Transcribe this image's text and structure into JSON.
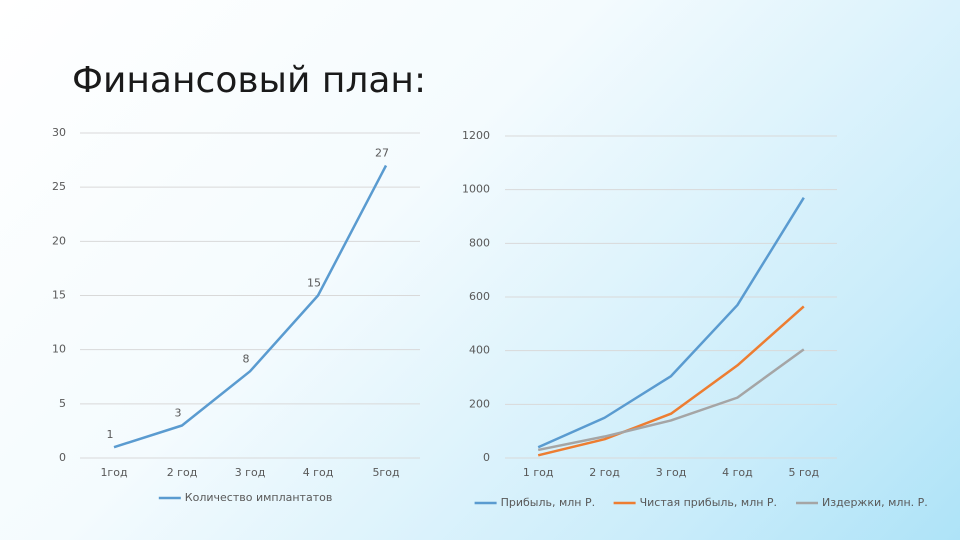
{
  "title": "Финансовый план:",
  "chart_data": [
    {
      "type": "line",
      "categories": [
        "1год",
        "2 год",
        "3 год",
        "4 год",
        "5год"
      ],
      "series": [
        {
          "name": "Количество имплантатов",
          "color": "#5a9bd0",
          "values": [
            1,
            3,
            8,
            15,
            27
          ]
        }
      ],
      "ylim": [
        0,
        30
      ],
      "yticks": [
        0,
        5,
        10,
        15,
        20,
        25,
        30
      ],
      "grid": true,
      "data_labels": true,
      "legend": "bottom"
    },
    {
      "type": "line",
      "categories": [
        "1 год",
        "2 год",
        "3 год",
        "4 год",
        "5 год"
      ],
      "series": [
        {
          "name": "Прибыль, млн Р.",
          "color": "#5a9bd0",
          "values": [
            40,
            150,
            305,
            570,
            970
          ]
        },
        {
          "name": "Чистая прибыль, млн Р.",
          "color": "#ed7d31",
          "values": [
            10,
            70,
            165,
            345,
            565
          ]
        },
        {
          "name": "Издержки, млн. Р.",
          "color": "#a5a5a5",
          "values": [
            30,
            80,
            140,
            225,
            405
          ]
        }
      ],
      "ylim": [
        0,
        1200
      ],
      "yticks": [
        0,
        200,
        400,
        600,
        800,
        1000,
        1200
      ],
      "grid": true,
      "data_labels": false,
      "legend": "bottom"
    }
  ]
}
